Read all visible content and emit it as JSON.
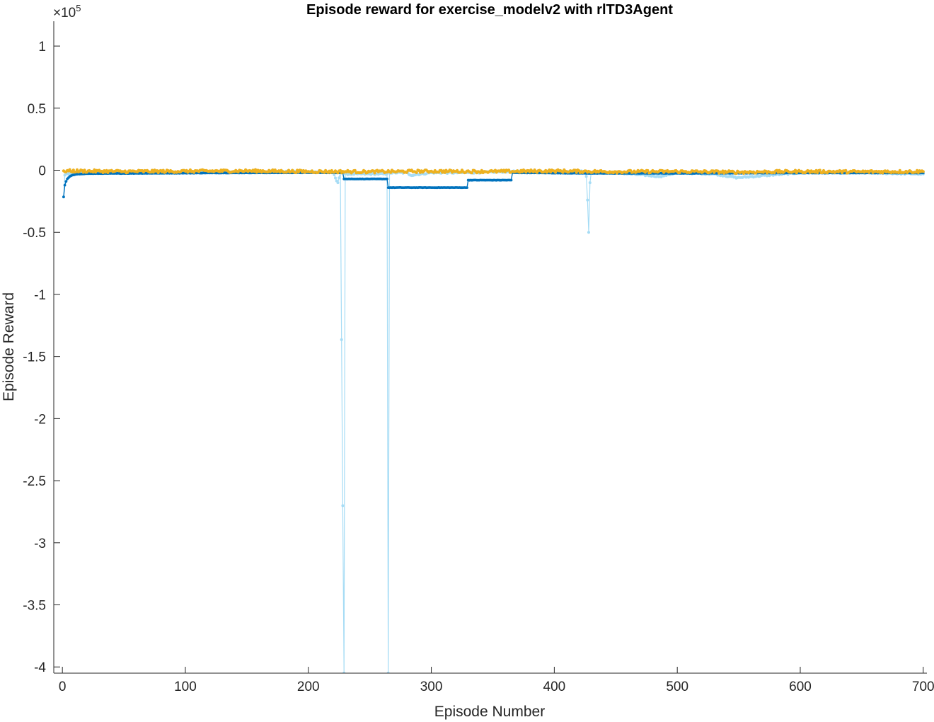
{
  "chart_data": {
    "type": "line",
    "title": "Episode reward for exercise_modelv2 with rlTD3Agent",
    "xlabel": "Episode Number",
    "ylabel": "Episode Reward",
    "y_exponent_base": "×10",
    "y_exponent_power": "5",
    "xlim": [
      -7,
      703
    ],
    "ylim": [
      -4.05,
      1.2
    ],
    "xticks": [
      0,
      100,
      200,
      300,
      400,
      500,
      600,
      700
    ],
    "xtick_labels": [
      "0",
      "100",
      "200",
      "300",
      "400",
      "500",
      "600",
      "700"
    ],
    "yticks": [
      1,
      0.5,
      0,
      -0.5,
      -1,
      -1.5,
      -2,
      -2.5,
      -3,
      -3.5,
      -4
    ],
    "ytick_labels": [
      "1",
      "0.5",
      "0",
      "-0.5",
      "-1",
      "-1.5",
      "-2",
      "-2.5",
      "-3",
      "-3.5",
      "-4"
    ],
    "grid": false,
    "legend": "none",
    "colors": {
      "episode_reward": "#a6dcf5",
      "average_reward": "#0072bd",
      "episode_q0": "#edb120"
    },
    "series": [
      {
        "key": "episode_reward",
        "points": [
          [
            1,
            -0.215
          ],
          [
            2,
            -0.04
          ],
          [
            3,
            -0.03
          ],
          [
            10,
            -0.025
          ],
          [
            50,
            -0.02
          ],
          [
            80,
            -0.02
          ],
          [
            100,
            -0.015
          ],
          [
            150,
            -0.015
          ],
          [
            200,
            -0.01
          ],
          [
            220,
            -0.02
          ],
          [
            224,
            -0.1
          ],
          [
            226,
            -0.02
          ],
          [
            229,
            -4.05
          ],
          [
            230,
            -0.03
          ],
          [
            240,
            -0.03
          ],
          [
            255,
            -0.03
          ],
          [
            264,
            -0.03
          ],
          [
            265,
            -4.05
          ],
          [
            266,
            -0.02
          ],
          [
            280,
            -0.02
          ],
          [
            283,
            -0.04
          ],
          [
            300,
            -0.02
          ],
          [
            330,
            -0.02
          ],
          [
            365,
            -0.01
          ],
          [
            400,
            -0.01
          ],
          [
            425,
            -0.01
          ],
          [
            426,
            -0.05
          ],
          [
            427,
            -0.24
          ],
          [
            428,
            -0.5
          ],
          [
            429,
            -0.1
          ],
          [
            430,
            -0.02
          ],
          [
            450,
            -0.02
          ],
          [
            486,
            -0.05
          ],
          [
            500,
            -0.02
          ],
          [
            530,
            -0.03
          ],
          [
            549,
            -0.06
          ],
          [
            600,
            -0.02
          ],
          [
            650,
            -0.02
          ],
          [
            700,
            -0.03
          ]
        ]
      },
      {
        "key": "average_reward",
        "points": [
          [
            1,
            -0.215
          ],
          [
            2,
            -0.12
          ],
          [
            3,
            -0.09
          ],
          [
            4,
            -0.07
          ],
          [
            6,
            -0.05
          ],
          [
            8,
            -0.04
          ],
          [
            12,
            -0.032
          ],
          [
            20,
            -0.027
          ],
          [
            60,
            -0.025
          ],
          [
            120,
            -0.022
          ],
          [
            200,
            -0.02
          ],
          [
            228,
            -0.02
          ],
          [
            229,
            -0.07
          ],
          [
            264,
            -0.07
          ],
          [
            265,
            -0.14
          ],
          [
            329,
            -0.14
          ],
          [
            330,
            -0.08
          ],
          [
            365,
            -0.08
          ],
          [
            366,
            -0.02
          ],
          [
            430,
            -0.025
          ],
          [
            500,
            -0.025
          ],
          [
            600,
            -0.022
          ],
          [
            700,
            -0.022
          ]
        ]
      },
      {
        "key": "episode_q0",
        "points": [
          [
            1,
            -0.005
          ],
          [
            50,
            -0.01
          ],
          [
            100,
            -0.008
          ],
          [
            150,
            -0.005
          ],
          [
            200,
            -0.01
          ],
          [
            250,
            -0.012
          ],
          [
            300,
            -0.008
          ],
          [
            350,
            -0.01
          ],
          [
            400,
            -0.006
          ],
          [
            450,
            -0.012
          ],
          [
            500,
            -0.01
          ],
          [
            550,
            -0.015
          ],
          [
            600,
            -0.01
          ],
          [
            650,
            -0.012
          ],
          [
            700,
            -0.01
          ]
        ]
      }
    ]
  }
}
